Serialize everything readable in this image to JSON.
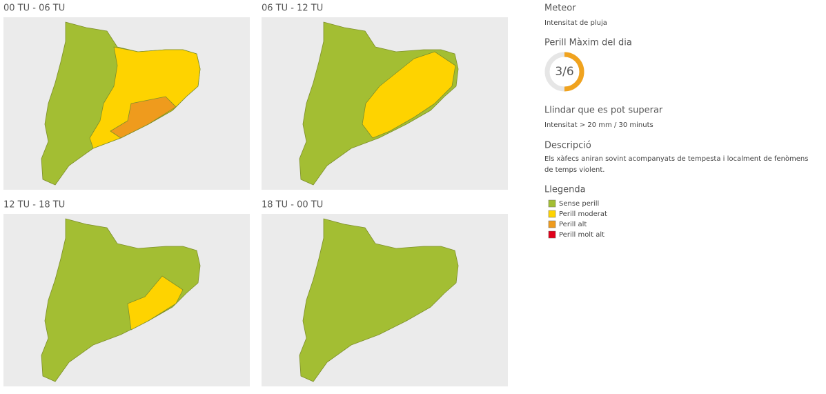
{
  "maps": [
    {
      "title": "00 TU - 06 TU",
      "levels": [
        0,
        1,
        2
      ]
    },
    {
      "title": "06 TU - 12 TU",
      "levels": [
        0,
        1
      ]
    },
    {
      "title": "12 TU - 18 TU",
      "levels": [
        0,
        1
      ]
    },
    {
      "title": "18 TU - 00 TU",
      "levels": [
        0
      ]
    }
  ],
  "sidebar": {
    "meteor_heading": "Meteor",
    "meteor": "Intensitat de pluja",
    "danger_heading": "Perill Màxim del dia",
    "danger": {
      "value": 3,
      "max": 6,
      "label": "3/6",
      "color": "#f0a31f"
    },
    "threshold_heading": "Llindar que es pot superar",
    "threshold": "Intensitat > 20 mm / 30 minuts",
    "description_heading": "Descripció",
    "description": "Els xàfecs aniran sovint acompanyats de tempesta i localment de fenòmens de temps violent.",
    "legend_heading": "Llegenda",
    "legend": [
      {
        "label": "Sense perill",
        "color": "#a3be33"
      },
      {
        "label": "Perill moderat",
        "color": "#fed300"
      },
      {
        "label": "Perill alt",
        "color": "#ef9b1d"
      },
      {
        "label": "Perill molt alt",
        "color": "#e0001a"
      }
    ]
  }
}
